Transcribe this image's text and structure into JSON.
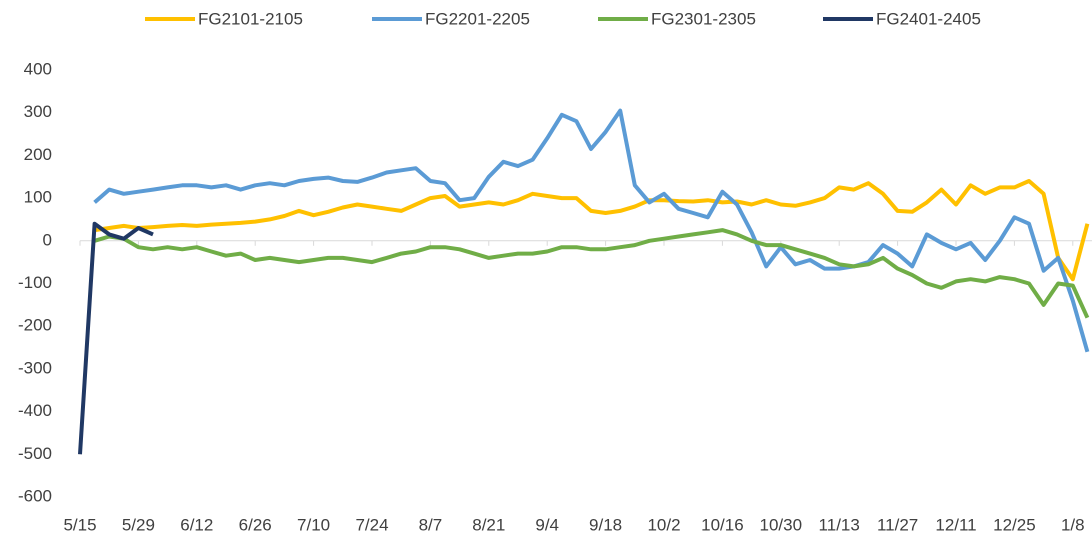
{
  "chart_data": {
    "type": "line",
    "categories": [
      "5/15",
      null,
      null,
      null,
      "5/29",
      null,
      null,
      null,
      "6/12",
      null,
      null,
      null,
      "6/26",
      null,
      null,
      null,
      "7/10",
      null,
      null,
      null,
      "7/24",
      null,
      null,
      null,
      "8/7",
      null,
      null,
      null,
      "8/21",
      null,
      null,
      null,
      "9/4",
      null,
      null,
      null,
      "9/18",
      null,
      null,
      null,
      "10/2",
      null,
      null,
      null,
      "10/16",
      null,
      null,
      null,
      "10/30",
      null,
      null,
      null,
      "11/13",
      null,
      null,
      null,
      "11/27",
      null,
      null,
      null,
      "12/11",
      null,
      null,
      null,
      "12/25",
      null,
      null,
      null,
      "1/8",
      null
    ],
    "series": [
      {
        "name": "FG2101-2105",
        "color": "#ffc000",
        "values": [
          null,
          25,
          30,
          35,
          30,
          32,
          35,
          37,
          35,
          38,
          40,
          42,
          45,
          50,
          58,
          70,
          60,
          68,
          78,
          85,
          80,
          75,
          70,
          85,
          100,
          105,
          80,
          85,
          90,
          85,
          95,
          110,
          105,
          100,
          100,
          70,
          65,
          70,
          80,
          95,
          95,
          93,
          92,
          95,
          90,
          92,
          85,
          95,
          85,
          82,
          90,
          100,
          125,
          120,
          135,
          110,
          70,
          68,
          90,
          120,
          85,
          130,
          110,
          125,
          125,
          140,
          110,
          -40,
          -90,
          40
        ]
      },
      {
        "name": "FG2201-2205",
        "color": "#5b9bd5",
        "values": [
          null,
          90,
          120,
          110,
          115,
          120,
          125,
          130,
          130,
          125,
          130,
          120,
          130,
          135,
          130,
          140,
          145,
          148,
          140,
          138,
          148,
          160,
          165,
          170,
          140,
          135,
          95,
          100,
          150,
          185,
          175,
          190,
          240,
          295,
          280,
          215,
          255,
          305,
          130,
          90,
          110,
          75,
          65,
          55,
          115,
          85,
          20,
          -60,
          -15,
          -55,
          -45,
          -65,
          -65,
          -60,
          -50,
          -10,
          -30,
          -60,
          15,
          -5,
          -20,
          -5,
          -45,
          0,
          55,
          40,
          -70,
          -40,
          -140,
          -260
        ]
      },
      {
        "name": "FG2301-2305",
        "color": "#70ad47",
        "values": [
          null,
          0,
          10,
          5,
          -15,
          -20,
          -15,
          -20,
          -15,
          -25,
          -35,
          -30,
          -45,
          -40,
          -45,
          -50,
          -45,
          -40,
          -40,
          -45,
          -50,
          -40,
          -30,
          -25,
          -15,
          -15,
          -20,
          -30,
          -40,
          -35,
          -30,
          -30,
          -25,
          -15,
          -15,
          -20,
          -20,
          -15,
          -10,
          0,
          5,
          10,
          15,
          20,
          25,
          15,
          0,
          -10,
          -10,
          -20,
          -30,
          -40,
          -55,
          -60,
          -55,
          -40,
          -65,
          -80,
          -100,
          -110,
          -95,
          -90,
          -95,
          -85,
          -90,
          -100,
          -150,
          -100,
          -105,
          -180
        ]
      },
      {
        "name": "FG2401-2405",
        "color": "#203864",
        "values": [
          -500,
          40,
          15,
          5,
          30,
          15,
          null,
          null,
          null,
          null,
          null,
          null,
          null,
          null,
          null,
          null,
          null,
          null,
          null,
          null,
          null,
          null,
          null,
          null,
          null,
          null,
          null,
          null,
          null,
          null,
          null,
          null,
          null,
          null,
          null,
          null,
          null,
          null,
          null,
          null,
          null,
          null,
          null,
          null,
          null,
          null,
          null,
          null,
          null,
          null,
          null,
          null,
          null,
          null,
          null,
          null,
          null,
          null,
          null,
          null,
          null,
          null,
          null,
          null,
          null,
          null,
          null,
          null,
          null,
          null
        ]
      }
    ],
    "ylim": [
      -600,
      400
    ],
    "yticks": [
      400,
      300,
      200,
      100,
      0,
      -100,
      -200,
      -300,
      -400,
      -500,
      -600
    ],
    "grid": false,
    "legend": "top"
  }
}
